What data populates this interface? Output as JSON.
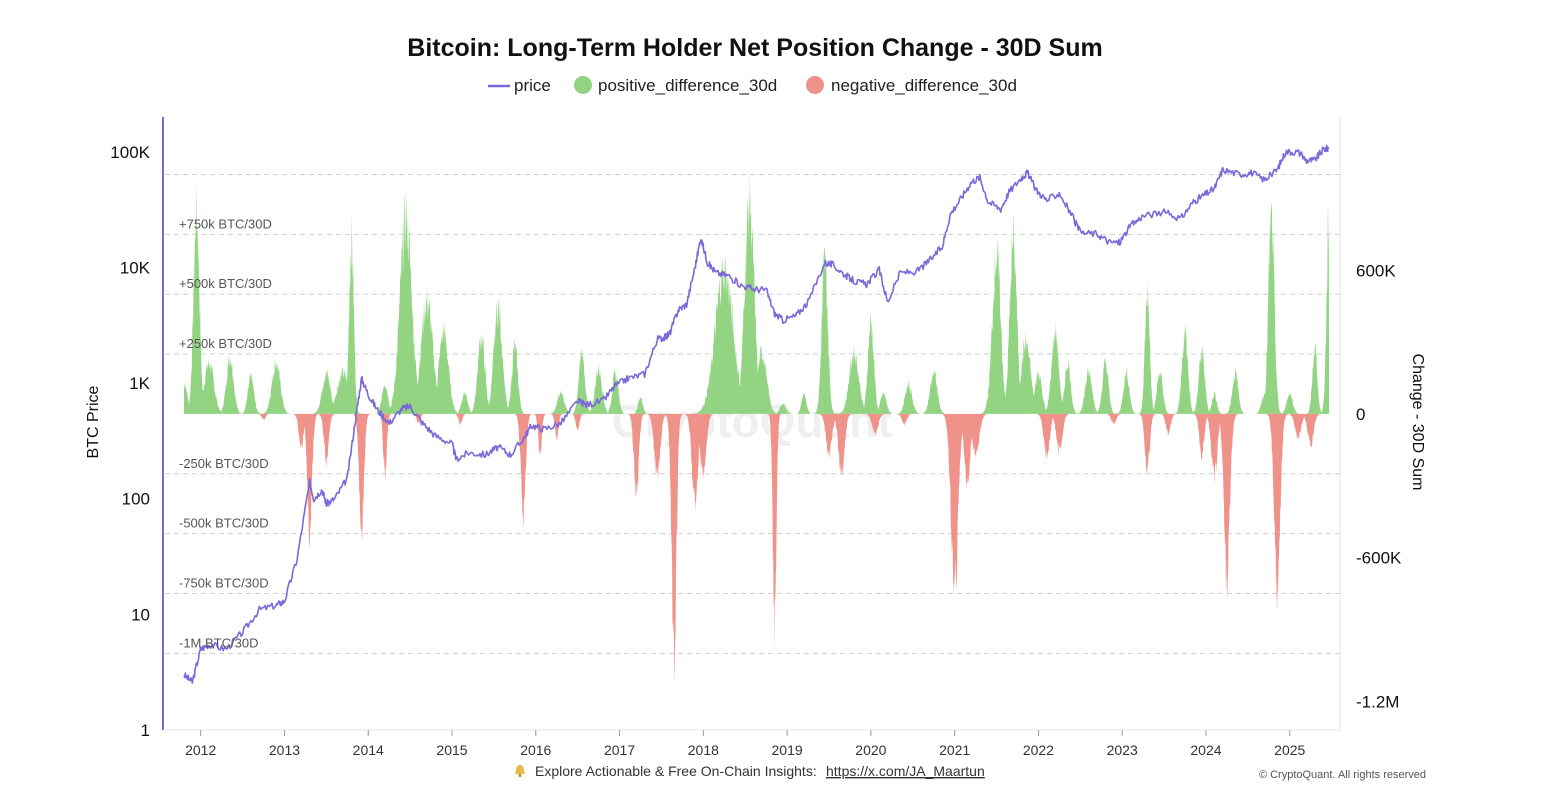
{
  "chart_data": {
    "type": "area",
    "title": "Bitcoin: Long-Term Holder Net Position Change - 30D Sum",
    "legend": {
      "placement": "top-center",
      "entries": [
        {
          "name": "price",
          "color": "#7b68d9",
          "marker": "line"
        },
        {
          "name": "positive_difference_30d",
          "color": "#93d483",
          "marker": "circle"
        },
        {
          "name": "negative_difference_30d",
          "color": "#ef928a",
          "marker": "circle"
        }
      ]
    },
    "x_ticks": [
      "2012",
      "2013",
      "2014",
      "2015",
      "2016",
      "2017",
      "2018",
      "2019",
      "2020",
      "2021",
      "2022",
      "2023",
      "2024",
      "2025"
    ],
    "y_left": {
      "label": "BTC Price",
      "scale": "log",
      "range": [
        1,
        200000
      ],
      "ticks": [
        "1",
        "10",
        "100",
        "1K",
        "10K",
        "100K"
      ]
    },
    "y_right": {
      "label": "Change - 30D Sum",
      "range": [
        -1320000,
        1240000
      ],
      "ticks": [
        "-1.2M",
        "-600K",
        "0",
        "600K"
      ]
    },
    "annotations": [
      {
        "text": "+750k BTC/30D",
        "value": 750000
      },
      {
        "text": "+500k BTC/30D",
        "value": 500000
      },
      {
        "text": "+250k BTC/30D",
        "value": 250000
      },
      {
        "text": "-250k BTC/30D",
        "value": -250000
      },
      {
        "text": "-500k BTC/30D",
        "value": -500000
      },
      {
        "text": "-750k BTC/30D",
        "value": -750000
      },
      {
        "text": "-1M BTC/30D",
        "value": -1000000
      }
    ],
    "series": [
      {
        "name": "price",
        "axis": "left",
        "color": "#7b68d9",
        "points": [
          [
            2011.8,
            3
          ],
          [
            2011.9,
            2.6
          ],
          [
            2012.0,
            5
          ],
          [
            2012.1,
            5.5
          ],
          [
            2012.3,
            5
          ],
          [
            2012.5,
            7
          ],
          [
            2012.7,
            11
          ],
          [
            2012.9,
            12
          ],
          [
            2013.0,
            13
          ],
          [
            2013.15,
            30
          ],
          [
            2013.3,
            140
          ],
          [
            2013.35,
            100
          ],
          [
            2013.45,
            120
          ],
          [
            2013.5,
            90
          ],
          [
            2013.6,
            100
          ],
          [
            2013.75,
            150
          ],
          [
            2013.85,
            500
          ],
          [
            2013.92,
            1100
          ],
          [
            2014.0,
            800
          ],
          [
            2014.1,
            600
          ],
          [
            2014.25,
            450
          ],
          [
            2014.4,
            600
          ],
          [
            2014.5,
            630
          ],
          [
            2014.65,
            450
          ],
          [
            2014.8,
            350
          ],
          [
            2015.0,
            300
          ],
          [
            2015.05,
            220
          ],
          [
            2015.2,
            250
          ],
          [
            2015.4,
            240
          ],
          [
            2015.55,
            280
          ],
          [
            2015.7,
            240
          ],
          [
            2015.85,
            330
          ],
          [
            2015.95,
            430
          ],
          [
            2016.1,
            400
          ],
          [
            2016.3,
            450
          ],
          [
            2016.5,
            700
          ],
          [
            2016.6,
            650
          ],
          [
            2016.8,
            700
          ],
          [
            2016.95,
            950
          ],
          [
            2017.1,
            1100
          ],
          [
            2017.3,
            1200
          ],
          [
            2017.45,
            2400
          ],
          [
            2017.55,
            2500
          ],
          [
            2017.6,
            2700
          ],
          [
            2017.7,
            4300
          ],
          [
            2017.8,
            4800
          ],
          [
            2017.9,
            10000
          ],
          [
            2017.97,
            18000
          ],
          [
            2018.05,
            11000
          ],
          [
            2018.15,
            9000
          ],
          [
            2018.3,
            8500
          ],
          [
            2018.45,
            7000
          ],
          [
            2018.6,
            6500
          ],
          [
            2018.75,
            6400
          ],
          [
            2018.85,
            4000
          ],
          [
            2018.95,
            3500
          ],
          [
            2019.1,
            3800
          ],
          [
            2019.25,
            5000
          ],
          [
            2019.45,
            11000
          ],
          [
            2019.55,
            10500
          ],
          [
            2019.7,
            8500
          ],
          [
            2019.82,
            7500
          ],
          [
            2019.95,
            7200
          ],
          [
            2020.1,
            9500
          ],
          [
            2020.2,
            5000
          ],
          [
            2020.35,
            9000
          ],
          [
            2020.55,
            9200
          ],
          [
            2020.7,
            11500
          ],
          [
            2020.85,
            15000
          ],
          [
            2020.95,
            29000
          ],
          [
            2021.08,
            40000
          ],
          [
            2021.2,
            55000
          ],
          [
            2021.3,
            60000
          ],
          [
            2021.4,
            37000
          ],
          [
            2021.55,
            32000
          ],
          [
            2021.65,
            45000
          ],
          [
            2021.8,
            60000
          ],
          [
            2021.87,
            66000
          ],
          [
            2021.97,
            47000
          ],
          [
            2022.1,
            38000
          ],
          [
            2022.25,
            44000
          ],
          [
            2022.4,
            28000
          ],
          [
            2022.5,
            20000
          ],
          [
            2022.7,
            19500
          ],
          [
            2022.85,
            16500
          ],
          [
            2022.97,
            16500
          ],
          [
            2023.1,
            23000
          ],
          [
            2023.25,
            28000
          ],
          [
            2023.5,
            30000
          ],
          [
            2023.7,
            26500
          ],
          [
            2023.85,
            37000
          ],
          [
            2023.97,
            42000
          ],
          [
            2024.1,
            48000
          ],
          [
            2024.2,
            70000
          ],
          [
            2024.4,
            64000
          ],
          [
            2024.55,
            66000
          ],
          [
            2024.7,
            57000
          ],
          [
            2024.85,
            70000
          ],
          [
            2024.95,
            100000
          ],
          [
            2025.1,
            100000
          ],
          [
            2025.2,
            84000
          ],
          [
            2025.3,
            85000
          ],
          [
            2025.4,
            105000
          ],
          [
            2025.47,
            108000
          ]
        ]
      },
      {
        "name": "positive_difference_30d",
        "axis": "right",
        "color": "#93d483",
        "peaks": [
          [
            2011.8,
            150000,
            0.06
          ],
          [
            2011.95,
            980000,
            0.05
          ],
          [
            2012.1,
            250000,
            0.08
          ],
          [
            2012.35,
            280000,
            0.06
          ],
          [
            2012.6,
            180000,
            0.05
          ],
          [
            2012.9,
            250000,
            0.07
          ],
          [
            2013.5,
            200000,
            0.07
          ],
          [
            2013.8,
            850000,
            0.04
          ],
          [
            2013.7,
            200000,
            0.1
          ],
          [
            2014.2,
            150000,
            0.05
          ],
          [
            2014.45,
            950000,
            0.1
          ],
          [
            2014.7,
            550000,
            0.1
          ],
          [
            2014.9,
            400000,
            0.08
          ],
          [
            2015.15,
            100000,
            0.05
          ],
          [
            2015.35,
            380000,
            0.06
          ],
          [
            2015.55,
            520000,
            0.07
          ],
          [
            2015.75,
            330000,
            0.05
          ],
          [
            2016.3,
            100000,
            0.06
          ],
          [
            2016.55,
            300000,
            0.05
          ],
          [
            2016.75,
            220000,
            0.06
          ],
          [
            2016.95,
            200000,
            0.05
          ],
          [
            2017.25,
            80000,
            0.04
          ],
          [
            2018.25,
            700000,
            0.15
          ],
          [
            2018.55,
            1030000,
            0.08
          ],
          [
            2018.7,
            300000,
            0.08
          ],
          [
            2018.95,
            50000,
            0.05
          ],
          [
            2019.2,
            100000,
            0.04
          ],
          [
            2019.45,
            750000,
            0.05
          ],
          [
            2019.8,
            300000,
            0.08
          ],
          [
            2020.0,
            450000,
            0.05
          ],
          [
            2020.15,
            100000,
            0.05
          ],
          [
            2020.45,
            140000,
            0.06
          ],
          [
            2020.75,
            200000,
            0.06
          ],
          [
            2021.45,
            200000,
            0.06
          ],
          [
            2021.5,
            780000,
            0.07
          ],
          [
            2021.7,
            850000,
            0.06
          ],
          [
            2021.85,
            350000,
            0.08
          ],
          [
            2022.0,
            200000,
            0.06
          ],
          [
            2022.2,
            400000,
            0.06
          ],
          [
            2022.35,
            250000,
            0.05
          ],
          [
            2022.6,
            200000,
            0.06
          ],
          [
            2022.8,
            250000,
            0.05
          ],
          [
            2023.05,
            200000,
            0.05
          ],
          [
            2023.3,
            600000,
            0.04
          ],
          [
            2023.45,
            200000,
            0.05
          ],
          [
            2023.75,
            400000,
            0.05
          ],
          [
            2023.95,
            300000,
            0.05
          ],
          [
            2024.1,
            100000,
            0.04
          ],
          [
            2024.35,
            200000,
            0.05
          ],
          [
            2024.7,
            100000,
            0.05
          ],
          [
            2024.78,
            950000,
            0.05
          ],
          [
            2025.0,
            100000,
            0.05
          ],
          [
            2025.3,
            320000,
            0.04
          ],
          [
            2025.47,
            980000,
            0.04
          ]
        ]
      },
      {
        "name": "negative_difference_30d",
        "axis": "right",
        "color": "#ef928a",
        "peaks": [
          [
            2012.75,
            30000,
            0.03
          ],
          [
            2013.2,
            160000,
            0.04
          ],
          [
            2013.3,
            570000,
            0.04
          ],
          [
            2013.5,
            230000,
            0.04
          ],
          [
            2013.92,
            550000,
            0.04
          ],
          [
            2014.2,
            300000,
            0.03
          ],
          [
            2014.6,
            50000,
            0.03
          ],
          [
            2015.1,
            50000,
            0.03
          ],
          [
            2015.85,
            490000,
            0.04
          ],
          [
            2016.05,
            200000,
            0.03
          ],
          [
            2016.25,
            120000,
            0.03
          ],
          [
            2016.5,
            80000,
            0.03
          ],
          [
            2017.2,
            400000,
            0.04
          ],
          [
            2017.45,
            300000,
            0.05
          ],
          [
            2017.65,
            1200000,
            0.04
          ],
          [
            2017.9,
            450000,
            0.05
          ],
          [
            2018.0,
            300000,
            0.05
          ],
          [
            2018.85,
            1050000,
            0.03
          ],
          [
            2019.5,
            200000,
            0.05
          ],
          [
            2019.65,
            300000,
            0.05
          ],
          [
            2020.05,
            100000,
            0.05
          ],
          [
            2020.4,
            50000,
            0.04
          ],
          [
            2021.0,
            850000,
            0.06
          ],
          [
            2021.15,
            350000,
            0.05
          ],
          [
            2021.25,
            200000,
            0.06
          ],
          [
            2022.1,
            200000,
            0.05
          ],
          [
            2022.25,
            180000,
            0.05
          ],
          [
            2022.9,
            50000,
            0.04
          ],
          [
            2023.3,
            270000,
            0.04
          ],
          [
            2023.55,
            100000,
            0.04
          ],
          [
            2023.95,
            200000,
            0.04
          ],
          [
            2024.1,
            300000,
            0.05
          ],
          [
            2024.25,
            820000,
            0.05
          ],
          [
            2024.85,
            850000,
            0.05
          ],
          [
            2025.1,
            120000,
            0.05
          ],
          [
            2025.25,
            150000,
            0.05
          ]
        ]
      }
    ],
    "watermark": "CryptoQuant",
    "grid": "dashed horizontal lines"
  },
  "footer": {
    "bell_icon": "bell-icon",
    "text": "Explore Actionable & Free On-Chain Insights:",
    "link": "https://x.com/JA_Maartun",
    "copyright": "© CryptoQuant. All rights reserved"
  }
}
